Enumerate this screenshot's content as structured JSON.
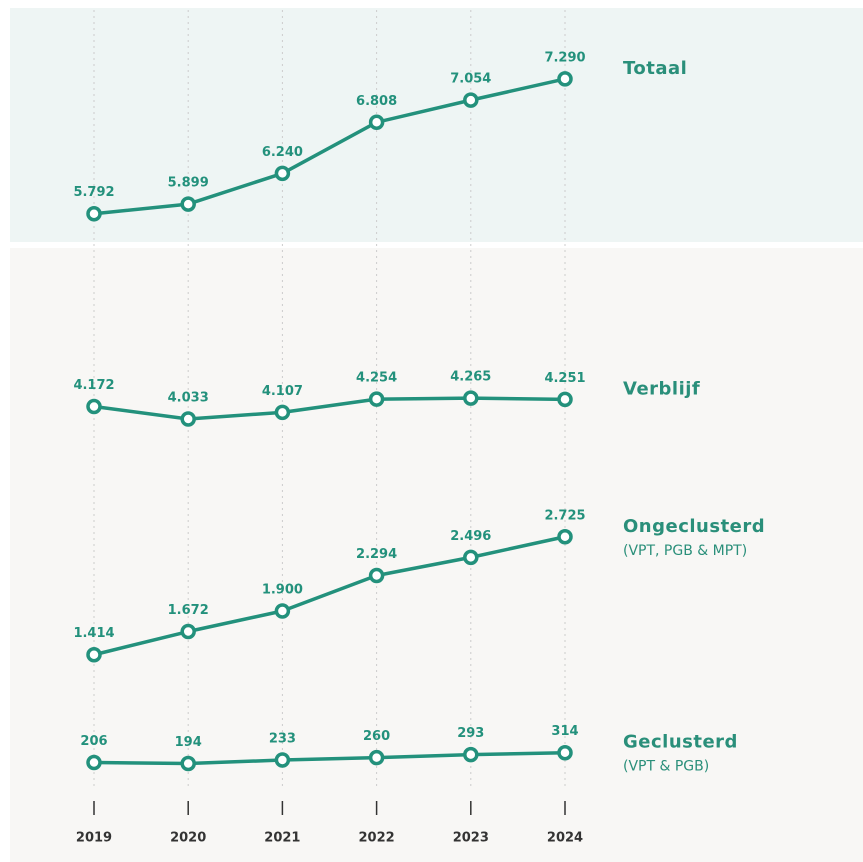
{
  "chart_data": {
    "type": "line",
    "categories": [
      "2019",
      "2020",
      "2021",
      "2022",
      "2023",
      "2024"
    ],
    "series": [
      {
        "name": "Totaal",
        "color": "#23917c",
        "values": [
          5792,
          5899,
          6240,
          6808,
          7054,
          7290
        ],
        "value_labels": [
          "5.792",
          "5.899",
          "6.240",
          "6.808",
          "7.054",
          "7.290"
        ]
      },
      {
        "name": "Verblijf",
        "color": "#23917c",
        "values": [
          4172,
          4033,
          4107,
          4254,
          4265,
          4251
        ],
        "value_labels": [
          "4.172",
          "4.033",
          "4.107",
          "4.254",
          "4.265",
          "4.251"
        ]
      },
      {
        "name": "Ongeclusterd",
        "note": "(VPT, PGB & MPT)",
        "color": "#23917c",
        "values": [
          1414,
          1672,
          1900,
          2294,
          2496,
          2725
        ],
        "value_labels": [
          "1.414",
          "1.672",
          "1.900",
          "2.294",
          "2.496",
          "2.725"
        ]
      },
      {
        "name": "Geclusterd",
        "note": "(VPT & PGB)",
        "color": "#23917c",
        "values": [
          206,
          194,
          233,
          260,
          293,
          314
        ]
      }
    ]
  }
}
